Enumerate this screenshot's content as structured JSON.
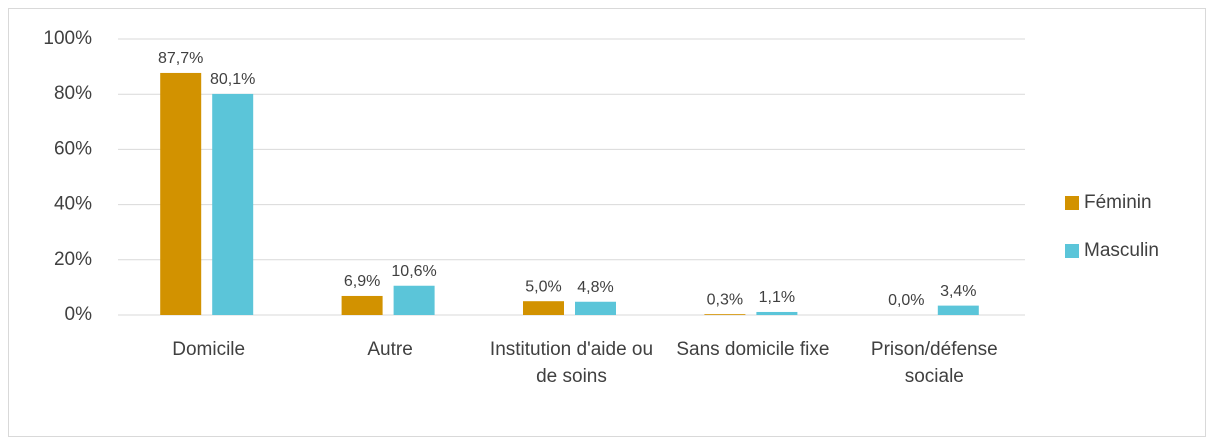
{
  "chart_data": {
    "type": "bar",
    "categories": [
      "Domicile",
      "Autre",
      "Institution d'aide ou de soins",
      "Sans domicile fixe",
      "Prison/défense sociale"
    ],
    "series": [
      {
        "name": "Féminin",
        "color": "#d29200",
        "values": [
          87.7,
          6.9,
          5.0,
          0.3,
          0.0
        ],
        "value_labels": [
          "87,7%",
          "6,9%",
          "5,0%",
          "0,3%",
          "0,0%"
        ]
      },
      {
        "name": "Masculin",
        "color": "#5bc5d9",
        "values": [
          80.1,
          10.6,
          4.8,
          1.1,
          3.4
        ],
        "value_labels": [
          "80,1%",
          "10,6%",
          "4,8%",
          "1,1%",
          "3,4%"
        ]
      }
    ],
    "ylim": [
      0,
      100
    ],
    "yticks": [
      {
        "value": 0,
        "label": "0%"
      },
      {
        "value": 20,
        "label": "20%"
      },
      {
        "value": 40,
        "label": "40%"
      },
      {
        "value": 60,
        "label": "60%"
      },
      {
        "value": 80,
        "label": "80%"
      },
      {
        "value": 100,
        "label": "100%"
      }
    ],
    "grid": true,
    "legend": "right"
  }
}
